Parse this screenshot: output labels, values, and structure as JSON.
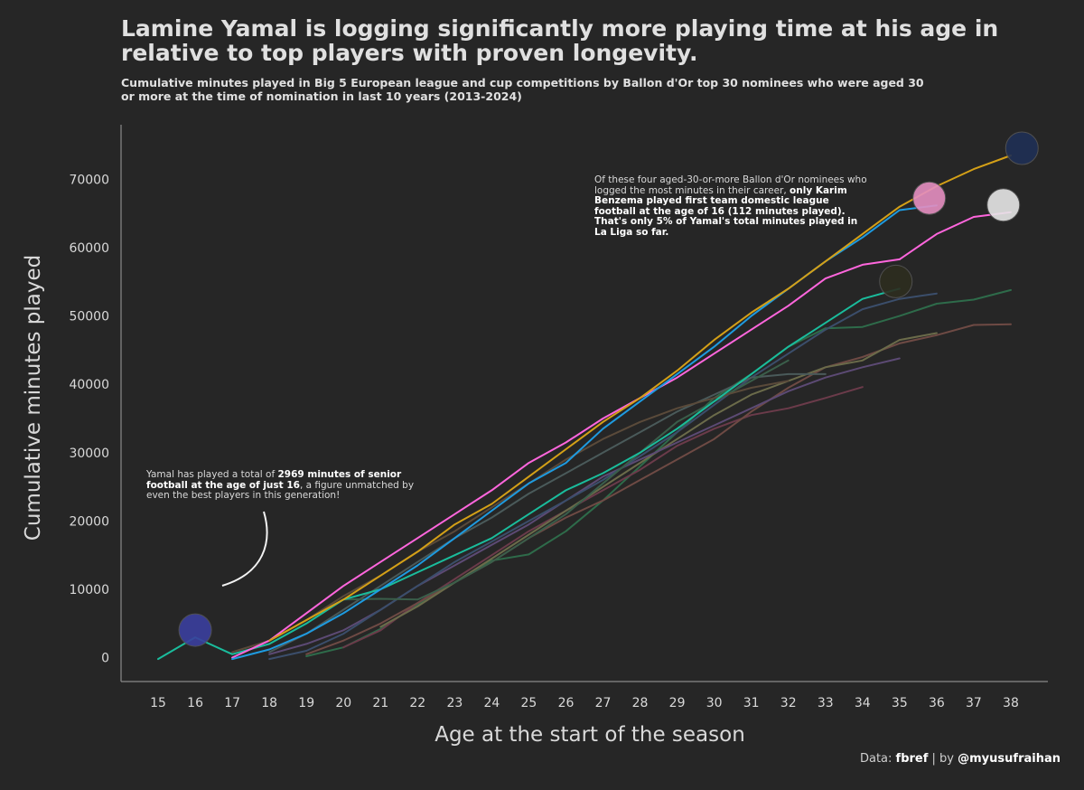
{
  "header": {
    "title": "Lamine Yamal is logging significantly more playing time at his age in relative to top players with proven longevity.",
    "subtitle": "Cumulative minutes played in Big 5 European league and cup competitions by Ballon d'Or top 30 nominees who were aged 30 or more at the time of nomination in last 10 years (2013-2024)"
  },
  "annotations": {
    "yamal": {
      "pre": "Yamal has played a total of ",
      "bold": "2969 minutes of senior football at the age of just 16",
      "post": ", a figure unmatched by even the best players in this generation!"
    },
    "benzema": {
      "pre": "Of these four aged-30-or-more Ballon d'Or nominees who logged the most minutes in their career, ",
      "bold": "only Karim Benzema played first team domestic league football at the age of 16 (112 minutes played). That's only 5% of Yamal's total minutes played in La Liga so far."
    }
  },
  "caption": {
    "prefix": "Data: ",
    "source": "fbref",
    "separator": " | by ",
    "author": "@myusufraihan"
  },
  "chart_data": {
    "type": "line",
    "xlabel": "Age at the start of the season",
    "ylabel": "Cumulative minutes played",
    "xlim": [
      14,
      39
    ],
    "ylim": [
      -3500,
      78000
    ],
    "x_ticks": [
      15,
      16,
      17,
      18,
      19,
      20,
      21,
      22,
      23,
      24,
      25,
      26,
      27,
      28,
      29,
      30,
      31,
      32,
      33,
      34,
      35,
      36,
      37,
      38
    ],
    "y_ticks": [
      0,
      10000,
      20000,
      30000,
      40000,
      50000,
      60000,
      70000
    ],
    "grid": false,
    "colors": {
      "background": "#262626",
      "axis": "#8a8a8a",
      "text": "#d9d9d9"
    },
    "series": [
      {
        "color": "#2e6b4a",
        "x": [
          19,
          20,
          21,
          22,
          23,
          24,
          25,
          26,
          27,
          28,
          29,
          30,
          31,
          32,
          33,
          34,
          35,
          36,
          37,
          38
        ],
        "y": [
          200,
          1500,
          4200,
          7800,
          11000,
          14200,
          15100,
          18500,
          23000,
          28000,
          33000,
          38000,
          41500,
          45500,
          48200,
          48400,
          50000,
          51800,
          52400,
          53800
        ]
      },
      {
        "color": "#6b3b4a",
        "x": [
          20,
          21,
          22,
          23,
          24,
          25,
          26,
          27,
          28,
          29,
          30,
          31,
          32,
          33,
          34
        ],
        "y": [
          1500,
          4000,
          8000,
          11500,
          15000,
          18500,
          21500,
          24500,
          27500,
          31000,
          33500,
          35500,
          36500,
          38000,
          39600
        ]
      },
      {
        "color": "#6e4a44",
        "x": [
          19,
          20,
          21,
          22,
          23,
          24,
          25,
          26,
          27,
          28,
          29,
          30,
          31,
          32,
          33,
          34,
          35,
          36,
          37,
          38
        ],
        "y": [
          500,
          2500,
          5000,
          8000,
          11000,
          14000,
          17500,
          20500,
          23000,
          26000,
          29000,
          32000,
          36000,
          39500,
          42500,
          44000,
          46000,
          47200,
          48700,
          48800
        ]
      },
      {
        "color": "#6b6b4a",
        "x": [
          21,
          22,
          23,
          24,
          25,
          26,
          27,
          28,
          29,
          30,
          31,
          32,
          33,
          34,
          35,
          36
        ],
        "y": [
          4500,
          7500,
          11000,
          14500,
          18000,
          21500,
          25000,
          28500,
          32000,
          35500,
          38500,
          40500,
          42500,
          43500,
          46500,
          47500
        ]
      },
      {
        "color": "#5c4a74",
        "x": [
          18,
          19,
          20,
          21,
          22,
          23,
          24,
          25,
          26,
          27,
          28,
          29,
          30,
          31,
          32,
          33,
          34,
          35
        ],
        "y": [
          500,
          2000,
          4000,
          7000,
          10500,
          13500,
          16500,
          19500,
          23000,
          26500,
          29000,
          31500,
          34000,
          36500,
          39000,
          41000,
          42500,
          43800
        ]
      },
      {
        "color": "#3b4e6b",
        "x": [
          18,
          19,
          20,
          21,
          22,
          23,
          24,
          25,
          26,
          27,
          28,
          29,
          30,
          31,
          32,
          33,
          34,
          35,
          36
        ],
        "y": [
          -200,
          1000,
          3500,
          7000,
          10500,
          14000,
          17000,
          20000,
          23000,
          26000,
          29500,
          33000,
          37000,
          41000,
          44500,
          48000,
          51000,
          52500,
          53300
        ]
      },
      {
        "color": "#4a5a5a",
        "x": [
          18,
          19,
          20,
          21,
          22,
          23,
          24,
          25,
          26,
          27,
          28,
          29,
          30,
          31,
          32,
          33
        ],
        "y": [
          800,
          3500,
          7000,
          10500,
          14000,
          17500,
          20500,
          24000,
          27000,
          30000,
          33000,
          36000,
          38500,
          41000,
          41500,
          41500
        ]
      },
      {
        "color": "#3a5e4a",
        "x": [
          18,
          19,
          20,
          21,
          22,
          23,
          24,
          25,
          26,
          27,
          28,
          29,
          30,
          31,
          32
        ],
        "y": [
          2500,
          5500,
          8500,
          8600,
          8500,
          11000,
          14000,
          17500,
          21000,
          25500,
          30000,
          34500,
          37500,
          40500,
          43500
        ]
      },
      {
        "color": "#5a4a3a",
        "x": [
          17,
          18,
          19,
          20,
          21,
          22,
          23,
          24,
          25,
          26,
          27,
          28,
          29,
          30,
          31,
          32
        ],
        "y": [
          800,
          2500,
          5500,
          9000,
          12000,
          15500,
          18500,
          22000,
          25500,
          29000,
          32000,
          34500,
          36500,
          38000,
          39500,
          40500
        ]
      },
      {
        "color": "#1abc9c",
        "x": [
          15,
          16,
          17,
          18,
          19,
          20,
          21,
          22,
          23,
          24,
          25,
          26,
          27,
          28,
          29,
          30,
          31,
          32,
          33,
          34,
          35
        ],
        "y": [
          -200,
          2969,
          500,
          2000,
          5000,
          8500,
          10000,
          12500,
          15000,
          17500,
          21000,
          24500,
          27000,
          30000,
          33500,
          37500,
          41500,
          45500,
          49000,
          52500,
          54000
        ]
      },
      {
        "color": "#ff66dd",
        "x": [
          17,
          18,
          19,
          20,
          21,
          22,
          23,
          24,
          25,
          26,
          27,
          28,
          29,
          30,
          31,
          32,
          33,
          34,
          35
        ],
        "y": [
          0,
          2500,
          6500,
          10500,
          14000,
          17500,
          21000,
          24500,
          28500,
          31500,
          35000,
          38000,
          41000,
          44500,
          48000,
          51500,
          55500,
          57500,
          58300
        ]
      },
      {
        "color": "#ff66dd",
        "x": [
          35,
          36,
          37,
          38
        ],
        "y": [
          58300,
          62000,
          64500,
          65200
        ]
      },
      {
        "color": "#1e9be0",
        "x": [
          17,
          18,
          19,
          20,
          21,
          22,
          23,
          24,
          25,
          26,
          27,
          28,
          29,
          30,
          31,
          32,
          33,
          34,
          35,
          36
        ],
        "y": [
          -200,
          1200,
          3500,
          6500,
          10000,
          13500,
          17500,
          21500,
          25500,
          28500,
          33500,
          37500,
          41500,
          45500,
          50000,
          54000,
          58000,
          61500,
          65500,
          66200
        ]
      },
      {
        "color": "#d4a017",
        "x": [
          18,
          19,
          20,
          21,
          22,
          23,
          24,
          25,
          26,
          27,
          28,
          29,
          30,
          31,
          32,
          33,
          34,
          35,
          36,
          37,
          38
        ],
        "y": [
          2500,
          5500,
          8500,
          12000,
          15500,
          19500,
          22500,
          26500,
          30500,
          34500,
          38000,
          42000,
          46500,
          50500,
          54000,
          58000,
          62000,
          66000,
          69000,
          71500,
          73500
        ]
      }
    ]
  }
}
